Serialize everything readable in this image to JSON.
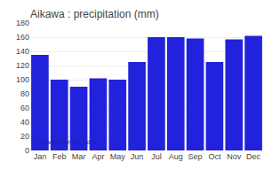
{
  "chart_data": {
    "type": "bar",
    "title": "Aikawa : precipitation (mm)",
    "categories": [
      "Jan",
      "Feb",
      "Mar",
      "Apr",
      "May",
      "Jun",
      "Jul",
      "Aug",
      "Sep",
      "Oct",
      "Nov",
      "Dec"
    ],
    "values": [
      135,
      100,
      90,
      102,
      100,
      125,
      160,
      160,
      158,
      125,
      157,
      162
    ],
    "color": "#2222DD",
    "ylim": [
      0,
      180
    ],
    "yticks": [
      0,
      20,
      40,
      60,
      80,
      100,
      120,
      140,
      160,
      180
    ],
    "grid": true,
    "annotations": [
      "www.allmetsat.com"
    ]
  }
}
